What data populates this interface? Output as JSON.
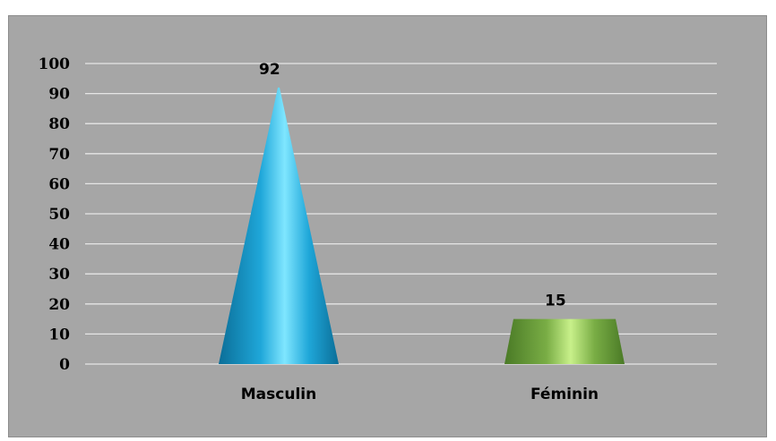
{
  "chart_data": {
    "type": "bar",
    "categories": [
      "Masculin",
      "Féminin"
    ],
    "values": [
      92,
      15
    ],
    "title": "",
    "xlabel": "",
    "ylabel": "",
    "ylim": [
      0,
      100
    ],
    "yticks": [
      0,
      10,
      20,
      30,
      40,
      50,
      60,
      70,
      80,
      90,
      100
    ],
    "grid": true,
    "legend": "none",
    "colors": {
      "background": "#a6a6a6",
      "gridline": "#e6e6e6",
      "series_colors": [
        "#1fa7d9",
        "#79ad45"
      ],
      "series_highlights": [
        "#7fe6ff",
        "#c8f08a"
      ],
      "series_shadows": [
        "#0b6e98",
        "#4a7a26"
      ]
    },
    "shapes": [
      "cone",
      "cone"
    ]
  }
}
